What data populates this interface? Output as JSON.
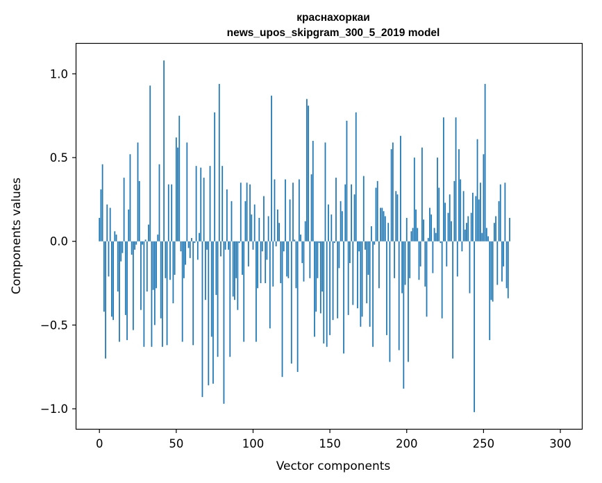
{
  "chart_data": {
    "type": "bar",
    "title": "краснахоркаи",
    "subtitle": "news_upos_skipgram_300_5_2019 model",
    "xlabel": "Vector components",
    "ylabel": "Components values",
    "xlim": [
      -15,
      314
    ],
    "ylim": [
      -1.12,
      1.18
    ],
    "x_ticks": [
      0,
      50,
      100,
      150,
      200,
      250,
      300
    ],
    "x_tick_labels": [
      "0",
      "50",
      "100",
      "150",
      "200",
      "250",
      "300"
    ],
    "y_ticks": [
      -1.0,
      -0.5,
      0.0,
      0.5,
      1.0
    ],
    "y_tick_labels": [
      "−1.0",
      "−0.5",
      "0.0",
      "0.5",
      "1.0"
    ],
    "grid": false,
    "legend": "none",
    "bar_color": "#1f77b4",
    "series": [
      {
        "x_start": 0,
        "values": [
          0.14,
          0.31,
          0.46,
          -0.42,
          -0.7,
          0.22,
          -0.21,
          0.2,
          -0.45,
          -0.47,
          0.06,
          0.04,
          -0.3,
          -0.6,
          -0.12,
          -0.07,
          0.38,
          -0.44,
          -0.59,
          0.19,
          0.52,
          -0.08,
          -0.53,
          -0.05,
          -0.02,
          0.59,
          0.36,
          -0.41,
          -0.02,
          -0.63,
          0.01,
          -0.3,
          0.1,
          0.93,
          -0.63,
          -0.29,
          -0.5,
          -0.28,
          0.04,
          0.46,
          -0.46,
          -0.63,
          1.08,
          -0.22,
          -0.62,
          0.34,
          -0.23,
          0.34,
          -0.37,
          -0.2,
          0.62,
          0.56,
          0.75,
          -0.06,
          -0.6,
          -0.22,
          -0.14,
          0.59,
          -0.04,
          -0.1,
          0.02,
          -0.62,
          -0.01,
          0.45,
          -0.11,
          0.05,
          0.44,
          -0.93,
          0.38,
          -0.35,
          -0.05,
          -0.86,
          0.45,
          -0.57,
          -0.85,
          0.77,
          -0.32,
          -0.69,
          0.94,
          -0.09,
          0.45,
          -0.97,
          -0.05,
          0.31,
          -0.05,
          -0.69,
          0.24,
          -0.33,
          -0.35,
          -0.22,
          -0.41,
          -0.01,
          0.35,
          -0.2,
          -0.6,
          0.24,
          0.35,
          -0.15,
          0.34,
          0.16,
          -0.05,
          0.22,
          -0.6,
          -0.28,
          0.14,
          -0.25,
          -0.06,
          0.27,
          -0.25,
          -0.11,
          0.15,
          -0.52,
          0.87,
          -0.27,
          0.37,
          -0.03,
          0.19,
          0.11,
          -0.25,
          -0.81,
          -0.06,
          0.37,
          -0.21,
          -0.22,
          0.25,
          -0.73,
          0.35,
          0.01,
          -0.28,
          -0.78,
          0.37,
          0.04,
          -0.13,
          -0.24,
          0.12,
          0.85,
          0.81,
          -0.22,
          0.4,
          0.6,
          -0.57,
          -0.42,
          -0.22,
          -0.01,
          -0.43,
          -0.3,
          -0.61,
          0.59,
          -0.63,
          0.22,
          -0.56,
          0.16,
          -0.47,
          -0.01,
          0.38,
          -0.46,
          -0.16,
          0.24,
          0.18,
          -0.67,
          0.34,
          0.72,
          -0.44,
          -0.13,
          0.34,
          -0.38,
          0.28,
          0.77,
          -0.4,
          -0.06,
          -0.51,
          -0.45,
          0.39,
          -0.05,
          -0.37,
          -0.2,
          -0.51,
          0.09,
          -0.63,
          -0.02,
          0.32,
          0.36,
          -0.28,
          0.2,
          0.2,
          0.18,
          0.15,
          -0.56,
          0.11,
          -0.72,
          0.55,
          0.59,
          -0.22,
          0.3,
          0.28,
          -0.65,
          0.63,
          -0.31,
          -0.88,
          -0.26,
          0.14,
          -0.72,
          -0.22,
          0.06,
          0.08,
          0.5,
          0.19,
          0.08,
          -0.23,
          -0.15,
          0.56,
          0.13,
          -0.27,
          -0.45,
          0.02,
          0.2,
          0.16,
          -0.19,
          0.08,
          0.05,
          0.5,
          0.32,
          -0.01,
          -0.46,
          0.74,
          0.23,
          -0.15,
          0.17,
          0.28,
          0.12,
          -0.7,
          0.36,
          0.74,
          -0.21,
          0.55,
          0.37,
          -0.06,
          0.3,
          0.07,
          0.11,
          0.15,
          -0.31,
          0.17,
          0.29,
          -1.02,
          0.27,
          0.61,
          0.25,
          0.35,
          0.05,
          0.52,
          0.94,
          0.08,
          0.03,
          -0.59,
          -0.35,
          -0.36,
          0.11,
          0.15,
          -0.26,
          0.24,
          0.34,
          -0.24,
          -0.15,
          0.35,
          -0.28,
          -0.34,
          0.14
        ]
      }
    ]
  }
}
